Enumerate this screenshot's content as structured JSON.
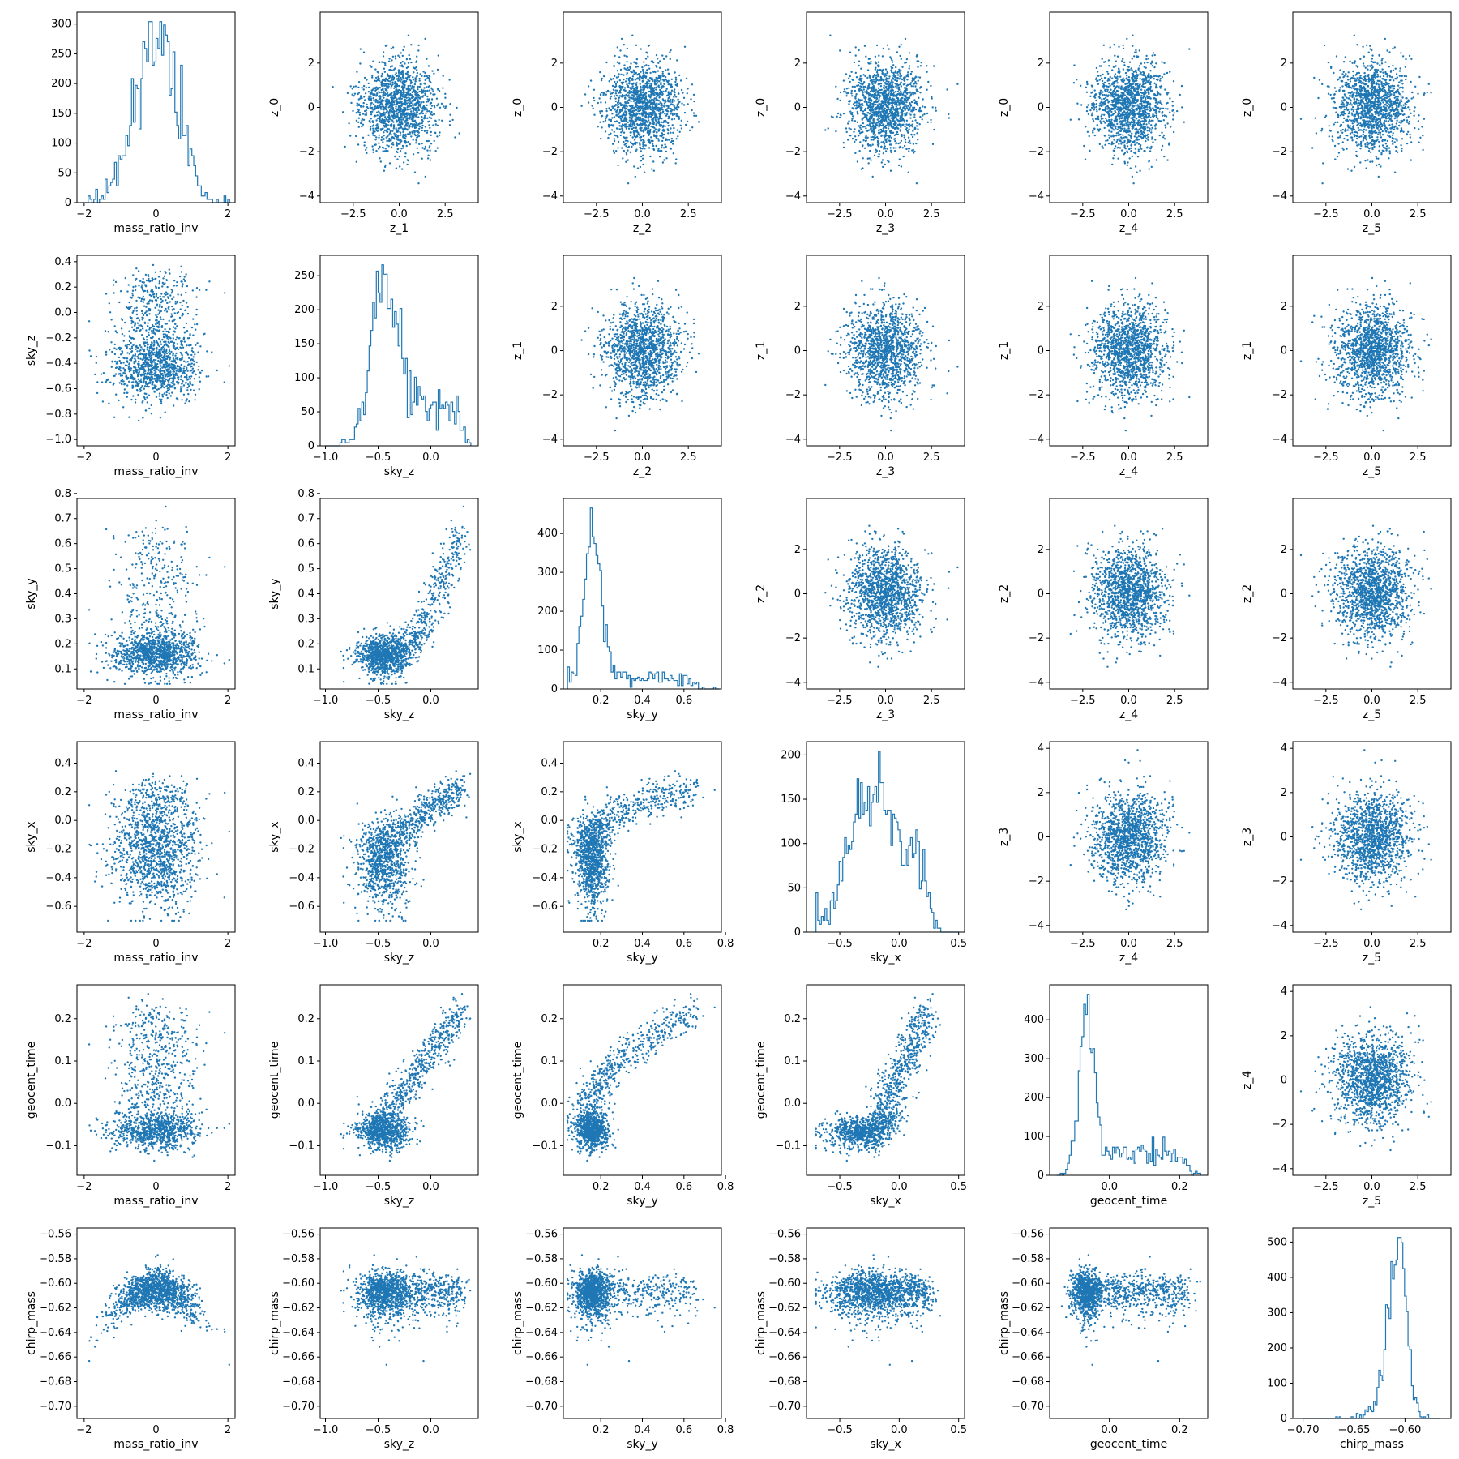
{
  "figure": {
    "colors": {
      "series": "#1f77b4",
      "axes": "#000000",
      "background": "#ffffff"
    },
    "grid": false,
    "legend": "none"
  },
  "variables": {
    "mass_ratio_inv": {
      "label": "mass_ratio_inv",
      "range": [
        -2.2,
        2.2
      ],
      "ticks": [
        -2,
        0,
        2
      ],
      "tick_labels": [
        "−2",
        "0",
        "2"
      ],
      "dist": {
        "kind": "normal",
        "mean": 0.0,
        "sd": 0.6,
        "min": -2.1,
        "max": 2.1
      }
    },
    "sky_z": {
      "label": "sky_z",
      "range": [
        -1.05,
        0.45
      ],
      "ticks": [
        -1.0,
        -0.5,
        0.0
      ],
      "tick_labels": [
        "−1.0",
        "−0.5",
        "0.0"
      ],
      "dist": {
        "kind": "skewed",
        "mean": -0.33,
        "sd": 0.21,
        "min": -1.0,
        "max": 0.38
      }
    },
    "sky_y": {
      "label": "sky_y",
      "range": [
        0.02,
        0.78
      ],
      "ticks": [
        0.2,
        0.4,
        0.6,
        0.8
      ],
      "tick_labels": [
        "0.2",
        "0.4",
        "0.6",
        "0.8"
      ],
      "ticks_yaxis": [
        0.1,
        0.2,
        0.3,
        0.4,
        0.5,
        0.6,
        0.7,
        0.8
      ],
      "tick_labels_yaxis": [
        "0.1",
        "0.2",
        "0.3",
        "0.4",
        "0.5",
        "0.6",
        "0.7",
        "0.8"
      ],
      "dist": {
        "kind": "mixture",
        "components": [
          {
            "weight": 0.68,
            "mean": 0.16,
            "sd": 0.045
          },
          {
            "weight": 0.32,
            "mean": 0.42,
            "sd": 0.14
          }
        ],
        "min": 0.04,
        "max": 0.77
      }
    },
    "sky_x": {
      "label": "sky_x",
      "range": [
        -0.78,
        0.55
      ],
      "ticks": [
        -0.5,
        0.0,
        0.5
      ],
      "tick_labels": [
        "−0.5",
        "0.0",
        "0.5"
      ],
      "ticks_yaxis": [
        -0.6,
        -0.4,
        -0.2,
        0.0,
        0.2,
        0.4
      ],
      "tick_labels_yaxis": [
        "−0.6",
        "−0.4",
        "−0.2",
        "0.0",
        "0.2",
        "0.4"
      ],
      "dist": {
        "kind": "mixture",
        "components": [
          {
            "weight": 0.5,
            "mean": -0.32,
            "sd": 0.16
          },
          {
            "weight": 0.5,
            "mean": 0.17,
            "sd": 0.11
          }
        ],
        "min": -0.7,
        "max": 0.5
      }
    },
    "geocent_time": {
      "label": "geocent_time",
      "range": [
        -0.17,
        0.28
      ],
      "ticks": [
        0.0,
        0.2
      ],
      "tick_labels": [
        "0.0",
        "0.2"
      ],
      "ticks_yaxis": [
        -0.1,
        0.0,
        0.1,
        0.2
      ],
      "tick_labels_yaxis": [
        "−0.1",
        "0.0",
        "0.1",
        "0.2"
      ],
      "dist": {
        "kind": "mixture",
        "components": [
          {
            "weight": 0.62,
            "mean": -0.075,
            "sd": 0.02
          },
          {
            "weight": 0.22,
            "mean": 0.06,
            "sd": 0.08
          },
          {
            "weight": 0.16,
            "mean": 0.22,
            "sd": 0.018
          }
        ],
        "min": -0.15,
        "max": 0.26
      }
    },
    "chirp_mass": {
      "label": "chirp_mass",
      "range": [
        -0.71,
        -0.555
      ],
      "ticks": [
        -0.7,
        -0.65,
        -0.6
      ],
      "tick_labels": [
        "−0.70",
        "−0.65",
        "−0.60"
      ],
      "ticks_yaxis": [
        -0.7,
        -0.68,
        -0.66,
        -0.64,
        -0.62,
        -0.6,
        -0.58,
        -0.56
      ],
      "tick_labels_yaxis": [
        "−0.70",
        "−0.68",
        "−0.66",
        "−0.64",
        "−0.62",
        "−0.60",
        "−0.58",
        "−0.56"
      ],
      "dist": {
        "kind": "leftskew",
        "mean": -0.602,
        "sd": 0.012,
        "min": -0.7,
        "max": -0.565
      }
    },
    "z": {
      "range": [
        -4.3,
        4.3
      ],
      "ticks_xaxis": [
        -2.5,
        0.0,
        2.5
      ],
      "tick_labels_xaxis": [
        "−2.5",
        "0.0",
        "2.5"
      ],
      "ticks_yaxis": [
        -4,
        -2,
        0,
        2
      ],
      "tick_labels_yaxis": [
        "−4",
        "−2",
        "0",
        "2"
      ],
      "ticks_yaxis_4": [
        -4,
        -2,
        0,
        2,
        4
      ],
      "tick_labels_yaxis_4": [
        "−4",
        "−2",
        "0",
        "2",
        "4"
      ],
      "dist": {
        "kind": "normal",
        "mean": 0,
        "sd": 1,
        "min": -4.1,
        "max": 4.2
      }
    }
  },
  "chart_data": [
    {
      "type": "histogram",
      "row": 0,
      "col": 0,
      "variable": "mass_ratio_inv",
      "xlabel": "mass_ratio_inv",
      "ylim": [
        0,
        320
      ],
      "yticks": [
        0,
        50,
        100,
        150,
        200,
        250,
        300
      ],
      "ytick_labels": [
        "0",
        "50",
        "100",
        "150",
        "200",
        "250",
        "300"
      ]
    },
    {
      "type": "scatter",
      "row": 0,
      "col": 1,
      "x": "z_1",
      "y": "z_0",
      "xlabel": "z_1",
      "ylabel": "z_0"
    },
    {
      "type": "scatter",
      "row": 0,
      "col": 2,
      "x": "z_2",
      "y": "z_0",
      "xlabel": "z_2",
      "ylabel": "z_0"
    },
    {
      "type": "scatter",
      "row": 0,
      "col": 3,
      "x": "z_3",
      "y": "z_0",
      "xlabel": "z_3",
      "ylabel": "z_0"
    },
    {
      "type": "scatter",
      "row": 0,
      "col": 4,
      "x": "z_4",
      "y": "z_0",
      "xlabel": "z_4",
      "ylabel": "z_0"
    },
    {
      "type": "scatter",
      "row": 0,
      "col": 5,
      "x": "z_5",
      "y": "z_0",
      "xlabel": "z_5",
      "ylabel": "z_0"
    },
    {
      "type": "scatter",
      "row": 1,
      "col": 0,
      "x": "mass_ratio_inv",
      "y": "sky_z",
      "xlabel": "mass_ratio_inv",
      "ylabel": "sky_z",
      "yticks": [
        -1.0,
        -0.8,
        -0.6,
        -0.4,
        -0.2,
        0.0,
        0.2,
        0.4
      ],
      "ytick_labels": [
        "−1.0",
        "−0.8",
        "−0.6",
        "−0.4",
        "−0.2",
        "0.0",
        "0.2",
        "0.4"
      ]
    },
    {
      "type": "histogram",
      "row": 1,
      "col": 1,
      "variable": "sky_z",
      "xlabel": "sky_z",
      "ylim": [
        0,
        280
      ],
      "yticks": [
        0,
        50,
        100,
        150,
        200,
        250
      ],
      "ytick_labels": [
        "0",
        "50",
        "100",
        "150",
        "200",
        "250"
      ]
    },
    {
      "type": "scatter",
      "row": 1,
      "col": 2,
      "x": "z_2",
      "y": "z_1",
      "xlabel": "z_2",
      "ylabel": "z_1"
    },
    {
      "type": "scatter",
      "row": 1,
      "col": 3,
      "x": "z_3",
      "y": "z_1",
      "xlabel": "z_3",
      "ylabel": "z_1"
    },
    {
      "type": "scatter",
      "row": 1,
      "col": 4,
      "x": "z_4",
      "y": "z_1",
      "xlabel": "z_4",
      "ylabel": "z_1"
    },
    {
      "type": "scatter",
      "row": 1,
      "col": 5,
      "x": "z_5",
      "y": "z_1",
      "xlabel": "z_5",
      "ylabel": "z_1"
    },
    {
      "type": "scatter",
      "row": 2,
      "col": 0,
      "x": "mass_ratio_inv",
      "y": "sky_y",
      "xlabel": "mass_ratio_inv",
      "ylabel": "sky_y"
    },
    {
      "type": "scatter",
      "row": 2,
      "col": 1,
      "x": "sky_z",
      "y": "sky_y",
      "xlabel": "sky_z",
      "ylabel": "sky_y"
    },
    {
      "type": "histogram",
      "row": 2,
      "col": 2,
      "variable": "sky_y",
      "xlabel": "sky_y",
      "ylim": [
        0,
        490
      ],
      "xticks": [
        0.2,
        0.4,
        0.6
      ],
      "xtick_labels": [
        "0.2",
        "0.4",
        "0.6"
      ],
      "yticks": [
        0,
        100,
        200,
        300,
        400
      ],
      "ytick_labels": [
        "0",
        "100",
        "200",
        "300",
        "400"
      ]
    },
    {
      "type": "scatter",
      "row": 2,
      "col": 3,
      "x": "z_3",
      "y": "z_2",
      "xlabel": "z_3",
      "ylabel": "z_2"
    },
    {
      "type": "scatter",
      "row": 2,
      "col": 4,
      "x": "z_4",
      "y": "z_2",
      "xlabel": "z_4",
      "ylabel": "z_2"
    },
    {
      "type": "scatter",
      "row": 2,
      "col": 5,
      "x": "z_5",
      "y": "z_2",
      "xlabel": "z_5",
      "ylabel": "z_2"
    },
    {
      "type": "scatter",
      "row": 3,
      "col": 0,
      "x": "mass_ratio_inv",
      "y": "sky_x",
      "xlabel": "mass_ratio_inv",
      "ylabel": "sky_x"
    },
    {
      "type": "scatter",
      "row": 3,
      "col": 1,
      "x": "sky_z",
      "y": "sky_x",
      "xlabel": "sky_z",
      "ylabel": "sky_x"
    },
    {
      "type": "scatter",
      "row": 3,
      "col": 2,
      "x": "sky_y",
      "y": "sky_x",
      "xlabel": "sky_y",
      "ylabel": "sky_x"
    },
    {
      "type": "histogram",
      "row": 3,
      "col": 3,
      "variable": "sky_x",
      "xlabel": "sky_x",
      "ylim": [
        0,
        215
      ],
      "yticks": [
        0,
        50,
        100,
        150,
        200
      ],
      "ytick_labels": [
        "0",
        "50",
        "100",
        "150",
        "200"
      ]
    },
    {
      "type": "scatter",
      "row": 3,
      "col": 4,
      "x": "z_4",
      "y": "z_3",
      "xlabel": "z_4",
      "ylabel": "z_3",
      "yaxis4": true
    },
    {
      "type": "scatter",
      "row": 3,
      "col": 5,
      "x": "z_5",
      "y": "z_3",
      "xlabel": "z_5",
      "ylabel": "z_3",
      "yaxis4": true
    },
    {
      "type": "scatter",
      "row": 4,
      "col": 0,
      "x": "mass_ratio_inv",
      "y": "geocent_time",
      "xlabel": "mass_ratio_inv",
      "ylabel": "geocent_time"
    },
    {
      "type": "scatter",
      "row": 4,
      "col": 1,
      "x": "sky_z",
      "y": "geocent_time",
      "xlabel": "sky_z",
      "ylabel": "geocent_time"
    },
    {
      "type": "scatter",
      "row": 4,
      "col": 2,
      "x": "sky_y",
      "y": "geocent_time",
      "xlabel": "sky_y",
      "ylabel": "geocent_time"
    },
    {
      "type": "scatter",
      "row": 4,
      "col": 3,
      "x": "sky_x",
      "y": "geocent_time",
      "xlabel": "sky_x",
      "ylabel": "geocent_time"
    },
    {
      "type": "histogram",
      "row": 4,
      "col": 4,
      "variable": "geocent_time",
      "xlabel": "geocent_time",
      "ylim": [
        0,
        490
      ],
      "yticks": [
        0,
        100,
        200,
        300,
        400
      ],
      "ytick_labels": [
        "0",
        "100",
        "200",
        "300",
        "400"
      ]
    },
    {
      "type": "scatter",
      "row": 4,
      "col": 5,
      "x": "z_5",
      "y": "z_4",
      "xlabel": "z_5",
      "ylabel": "z_4",
      "yaxis4": true
    },
    {
      "type": "scatter",
      "row": 5,
      "col": 0,
      "x": "mass_ratio_inv",
      "y": "chirp_mass",
      "xlabel": "mass_ratio_inv",
      "ylabel": "chirp_mass"
    },
    {
      "type": "scatter",
      "row": 5,
      "col": 1,
      "x": "sky_z",
      "y": "chirp_mass",
      "xlabel": "sky_z",
      "ylabel": "chirp_mass"
    },
    {
      "type": "scatter",
      "row": 5,
      "col": 2,
      "x": "sky_y",
      "y": "chirp_mass",
      "xlabel": "sky_y",
      "ylabel": "chirp_mass"
    },
    {
      "type": "scatter",
      "row": 5,
      "col": 3,
      "x": "sky_x",
      "y": "chirp_mass",
      "xlabel": "sky_x",
      "ylabel": "chirp_mass"
    },
    {
      "type": "scatter",
      "row": 5,
      "col": 4,
      "x": "geocent_time",
      "y": "chirp_mass",
      "xlabel": "geocent_time",
      "ylabel": "chirp_mass"
    },
    {
      "type": "histogram",
      "row": 5,
      "col": 5,
      "variable": "chirp_mass",
      "xlabel": "chirp_mass",
      "ylim": [
        0,
        540
      ],
      "xticks": [
        -0.7,
        -0.65,
        -0.6
      ],
      "xtick_labels": [
        "−0.70",
        "−0.65",
        "−0.60"
      ],
      "yticks": [
        0,
        100,
        200,
        300,
        400,
        500
      ],
      "ytick_labels": [
        "0",
        "100",
        "200",
        "300",
        "400",
        "500"
      ]
    }
  ]
}
